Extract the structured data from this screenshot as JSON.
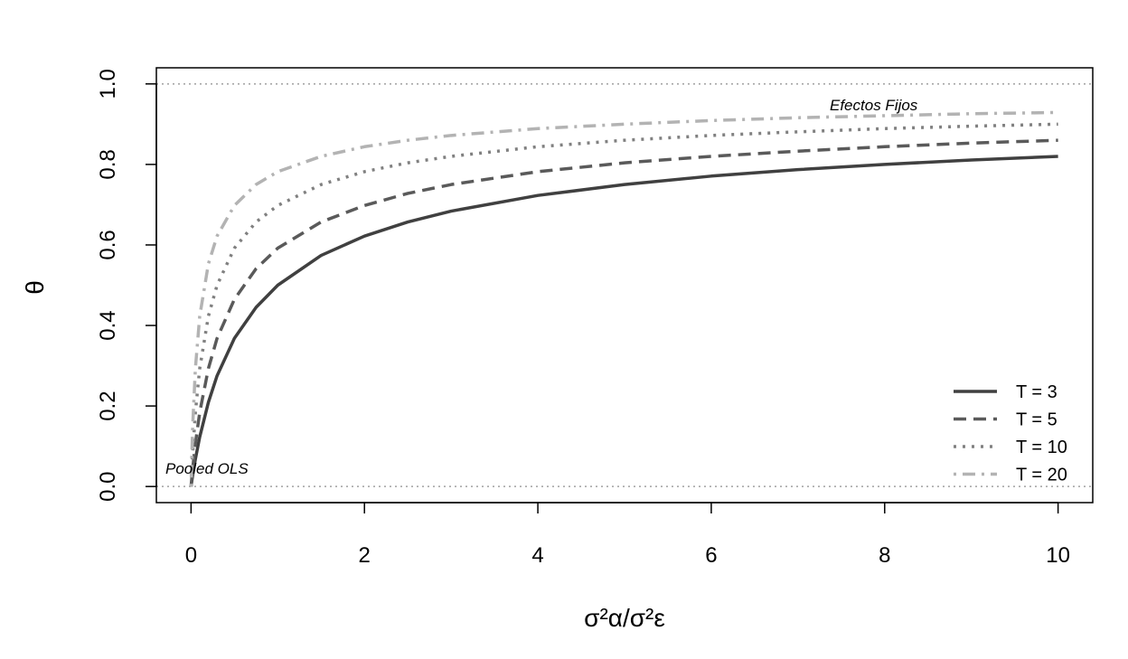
{
  "chart_data": {
    "type": "line",
    "xlabel": "σ²α/σ²ε",
    "ylabel": "θ",
    "xlim": [
      -0.4,
      10.4
    ],
    "ylim": [
      -0.04,
      1.04
    ],
    "xticks": [
      0,
      2,
      4,
      6,
      8,
      10
    ],
    "yticks": [
      "0.0",
      "0.2",
      "0.4",
      "0.6",
      "0.8",
      "1.0"
    ],
    "grid": false,
    "legend_placement": "bottom-right",
    "reference_lines": [
      {
        "y": 0,
        "label": "Pooled OLS",
        "color": "#a0a0a0",
        "style": "dotted"
      },
      {
        "y": 1,
        "label": "Efectos Fijos",
        "color": "#a0a0a0",
        "style": "dotted"
      }
    ],
    "x": [
      0,
      0.01,
      0.02,
      0.05,
      0.1,
      0.2,
      0.3,
      0.5,
      0.75,
      1,
      1.5,
      2,
      2.5,
      3,
      4,
      5,
      6,
      7,
      8,
      9,
      10
    ],
    "series": [
      {
        "name": "T = 3",
        "color": "#404040",
        "style": "solid",
        "values": [
          0,
          0.015,
          0.029,
          0.068,
          0.123,
          0.209,
          0.275,
          0.368,
          0.445,
          0.5,
          0.574,
          0.622,
          0.657,
          0.684,
          0.723,
          0.75,
          0.771,
          0.787,
          0.8,
          0.811,
          0.82
        ]
      },
      {
        "name": "T = 5",
        "color": "#5a5a5a",
        "style": "dashed",
        "values": [
          0,
          0.024,
          0.047,
          0.106,
          0.184,
          0.293,
          0.368,
          0.465,
          0.541,
          0.592,
          0.657,
          0.698,
          0.728,
          0.75,
          0.782,
          0.804,
          0.82,
          0.833,
          0.844,
          0.853,
          0.86
        ]
      },
      {
        "name": "T = 10",
        "color": "#808080",
        "style": "dotted",
        "values": [
          0,
          0.047,
          0.087,
          0.184,
          0.293,
          0.423,
          0.5,
          0.592,
          0.657,
          0.698,
          0.75,
          0.782,
          0.804,
          0.82,
          0.844,
          0.86,
          0.872,
          0.881,
          0.889,
          0.895,
          0.9
        ]
      },
      {
        "name": "T = 20",
        "color": "#b3b3b3",
        "style": "dotdash",
        "values": [
          0,
          0.087,
          0.155,
          0.293,
          0.423,
          0.553,
          0.622,
          0.698,
          0.75,
          0.782,
          0.82,
          0.844,
          0.86,
          0.872,
          0.889,
          0.9,
          0.909,
          0.916,
          0.921,
          0.926,
          0.929
        ]
      }
    ]
  }
}
